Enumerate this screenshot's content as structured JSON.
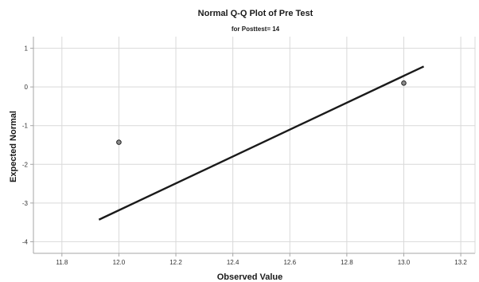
{
  "chart_data": {
    "type": "scatter",
    "title": "Normal Q-Q Plot of Pre Test",
    "subtitle": "for Posttest= 14",
    "xlabel": "Observed Value",
    "ylabel": "Expected Normal",
    "xlim": [
      11.7,
      13.25
    ],
    "ylim": [
      -4.3,
      1.3
    ],
    "x_ticks": [
      11.8,
      12.0,
      12.2,
      12.4,
      12.6,
      12.8,
      13.0,
      13.2
    ],
    "x_tick_labels": [
      "11.8",
      "12.0",
      "12.2",
      "12.4",
      "12.6",
      "12.8",
      "13.0",
      "13.2"
    ],
    "y_ticks": [
      1,
      0,
      -1,
      -2,
      -3,
      -4
    ],
    "y_tick_labels": [
      "1",
      "0",
      "-1",
      "-2",
      "-3",
      "-4"
    ],
    "grid": true,
    "points": [
      {
        "x": 12.0,
        "y": -1.43
      },
      {
        "x": 13.0,
        "y": 0.1
      }
    ],
    "reference_line": {
      "x": [
        11.93,
        13.07
      ],
      "y": [
        -3.43,
        0.53
      ]
    },
    "colors": {
      "point_fill": "#8c8c8c",
      "point_stroke": "#222222",
      "line": "#1a1a1a",
      "grid": "#d9d9d9",
      "frame": "#a6a6a6"
    }
  }
}
